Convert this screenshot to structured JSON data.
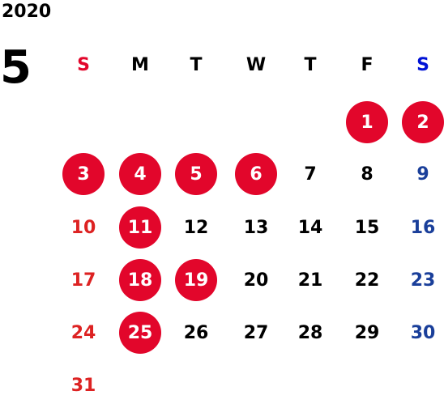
{
  "year": "2020",
  "month": "5",
  "weekdays": [
    "S",
    "M",
    "T",
    "W",
    "T",
    "F",
    "S"
  ],
  "days": [
    {
      "d": "1",
      "col": 5,
      "row": 0,
      "holiday": true
    },
    {
      "d": "2",
      "col": 6,
      "row": 0,
      "holiday": true
    },
    {
      "d": "3",
      "col": 0,
      "row": 1,
      "holiday": true
    },
    {
      "d": "4",
      "col": 1,
      "row": 1,
      "holiday": true
    },
    {
      "d": "5",
      "col": 2,
      "row": 1,
      "holiday": true
    },
    {
      "d": "6",
      "col": 3,
      "row": 1,
      "holiday": true
    },
    {
      "d": "7",
      "col": 4,
      "row": 1,
      "holiday": false
    },
    {
      "d": "8",
      "col": 5,
      "row": 1,
      "holiday": false
    },
    {
      "d": "9",
      "col": 6,
      "row": 1,
      "holiday": false
    },
    {
      "d": "10",
      "col": 0,
      "row": 2,
      "holiday": false
    },
    {
      "d": "11",
      "col": 1,
      "row": 2,
      "holiday": true
    },
    {
      "d": "12",
      "col": 2,
      "row": 2,
      "holiday": false
    },
    {
      "d": "13",
      "col": 3,
      "row": 2,
      "holiday": false
    },
    {
      "d": "14",
      "col": 4,
      "row": 2,
      "holiday": false
    },
    {
      "d": "15",
      "col": 5,
      "row": 2,
      "holiday": false
    },
    {
      "d": "16",
      "col": 6,
      "row": 2,
      "holiday": false
    },
    {
      "d": "17",
      "col": 0,
      "row": 3,
      "holiday": false
    },
    {
      "d": "18",
      "col": 1,
      "row": 3,
      "holiday": true
    },
    {
      "d": "19",
      "col": 2,
      "row": 3,
      "holiday": true
    },
    {
      "d": "20",
      "col": 3,
      "row": 3,
      "holiday": false
    },
    {
      "d": "21",
      "col": 4,
      "row": 3,
      "holiday": false
    },
    {
      "d": "22",
      "col": 5,
      "row": 3,
      "holiday": false
    },
    {
      "d": "23",
      "col": 6,
      "row": 3,
      "holiday": false
    },
    {
      "d": "24",
      "col": 0,
      "row": 4,
      "holiday": false
    },
    {
      "d": "25",
      "col": 1,
      "row": 4,
      "holiday": true
    },
    {
      "d": "26",
      "col": 2,
      "row": 4,
      "holiday": false
    },
    {
      "d": "27",
      "col": 3,
      "row": 4,
      "holiday": false
    },
    {
      "d": "28",
      "col": 4,
      "row": 4,
      "holiday": false
    },
    {
      "d": "29",
      "col": 5,
      "row": 4,
      "holiday": false
    },
    {
      "d": "30",
      "col": 6,
      "row": 4,
      "holiday": false
    },
    {
      "d": "31",
      "col": 0,
      "row": 5,
      "holiday": false
    }
  ],
  "colors": {
    "holiday_bg": "#e2062b",
    "sunday_text": "#dd2222",
    "saturday_text": "#1a3f9a",
    "weekday_text": "#000000"
  }
}
